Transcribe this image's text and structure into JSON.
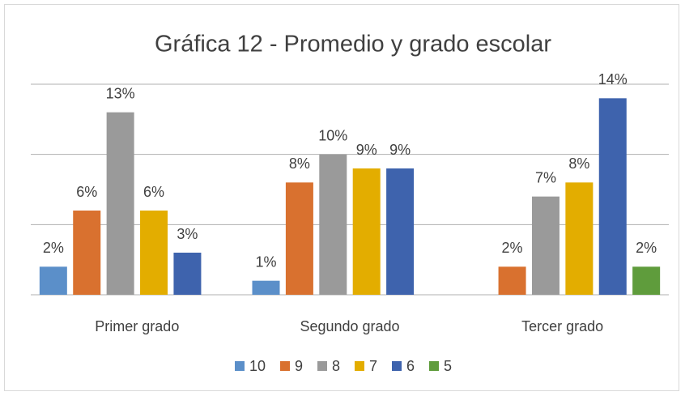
{
  "chart_data": {
    "type": "bar",
    "title": "Gráfica 12 - Promedio y grado escolar",
    "categories": [
      "Primer grado",
      "Segundo grado",
      "Tercer grado"
    ],
    "series": [
      {
        "name": "10",
        "color": "#5b8fc9",
        "values": [
          2,
          1,
          null
        ],
        "value_labels": [
          "2%",
          "1%",
          null
        ]
      },
      {
        "name": "9",
        "color": "#d9712f",
        "values": [
          6,
          8,
          2
        ],
        "value_labels": [
          "6%",
          "8%",
          "2%"
        ]
      },
      {
        "name": "8",
        "color": "#9a9a9a",
        "values": [
          13,
          10,
          7
        ],
        "value_labels": [
          "13%",
          "10%",
          "7%"
        ]
      },
      {
        "name": "7",
        "color": "#e3ad00",
        "values": [
          6,
          9,
          8
        ],
        "value_labels": [
          "6%",
          "9%",
          "8%"
        ]
      },
      {
        "name": "6",
        "color": "#3e63ad",
        "values": [
          3,
          9,
          14
        ],
        "value_labels": [
          "3%",
          "9%",
          "14%"
        ]
      },
      {
        "name": "5",
        "color": "#5f9c3c",
        "values": [
          null,
          null,
          2
        ],
        "value_labels": [
          null,
          null,
          "2%"
        ]
      }
    ],
    "ylim": [
      0,
      15
    ],
    "yticks": [
      0,
      5,
      10,
      15
    ],
    "grid": true,
    "legend": "bottom"
  }
}
